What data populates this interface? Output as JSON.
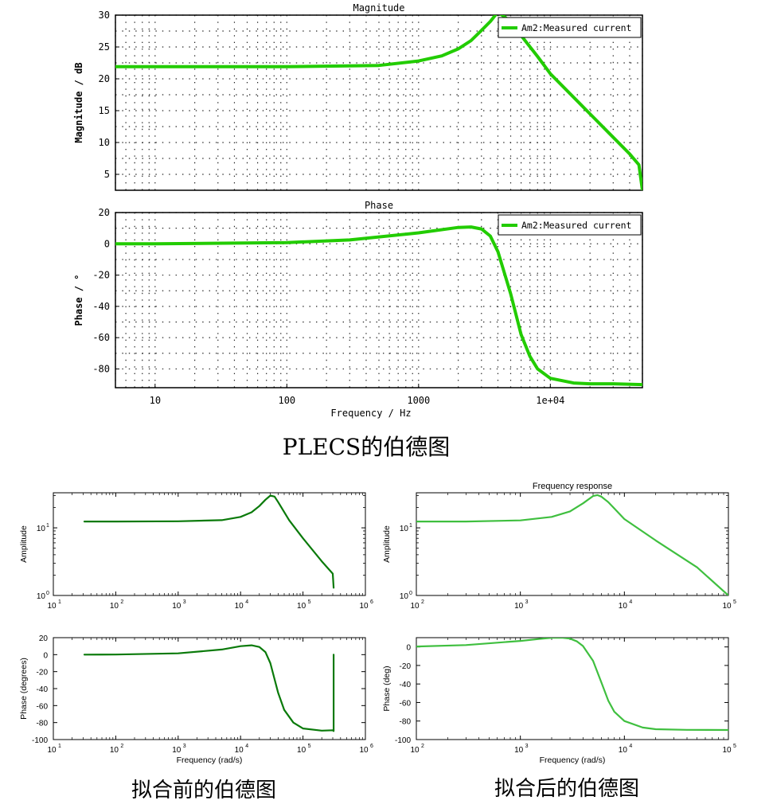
{
  "captions": {
    "plecs": "PLECS的伯德图",
    "before": "拟合前的伯德图",
    "after": "拟合后的伯德图"
  },
  "colors": {
    "plecs_line": "#22cc00",
    "before_line": "#0a7a0a",
    "after_line": "#3fbf3f",
    "grid_dot": "#222222",
    "axis": "#000000"
  },
  "chart_data": [
    {
      "id": "plecs-magnitude",
      "type": "line",
      "title": "Magnitude",
      "xlabel": "",
      "ylabel": "Magnitude / dB",
      "xscale": "log",
      "xlim": [
        5,
        50000
      ],
      "ylim": [
        2.5,
        30
      ],
      "yticks": [
        5,
        10,
        15,
        20,
        25,
        30
      ],
      "ytick_labels": [
        "5",
        "10",
        "15",
        "20",
        "25",
        "30"
      ],
      "xticks": [],
      "xtick_labels": [],
      "grid": "dotted",
      "legend": {
        "position": "top-right",
        "entries": [
          "Am2:Measured current"
        ]
      },
      "series": [
        {
          "name": "Am2:Measured current",
          "color": "#22cc00",
          "x": [
            5,
            10,
            100,
            500,
            1000,
            1500,
            2000,
            2500,
            3000,
            3500,
            4000,
            5000,
            6000,
            8000,
            10000,
            20000,
            40000,
            47000,
            50000
          ],
          "y": [
            21.9,
            21.9,
            21.9,
            22.1,
            22.8,
            23.6,
            24.7,
            26.0,
            27.6,
            29.0,
            30.5,
            29.0,
            26.8,
            23.5,
            20.8,
            14.5,
            8.2,
            6.5,
            2.5
          ]
        }
      ]
    },
    {
      "id": "plecs-phase",
      "type": "line",
      "title": "Phase",
      "xlabel": "Frequency / Hz",
      "ylabel": "Phase / °",
      "xscale": "log",
      "xlim": [
        5,
        50000
      ],
      "ylim": [
        -92,
        20
      ],
      "yticks": [
        -80,
        -60,
        -40,
        -20,
        0,
        20
      ],
      "ytick_labels": [
        "-80",
        "-60",
        "-40",
        "-20",
        "0",
        "20"
      ],
      "xticks": [
        10,
        100,
        1000,
        10000
      ],
      "xtick_labels": [
        "10",
        "100",
        "1000",
        "1e+04"
      ],
      "grid": "dotted",
      "legend": {
        "position": "top-right",
        "entries": [
          "Am2:Measured current"
        ]
      },
      "series": [
        {
          "name": "Am2:Measured current",
          "color": "#22cc00",
          "x": [
            5,
            10,
            100,
            300,
            1000,
            2000,
            2500,
            3000,
            3500,
            4000,
            5000,
            6000,
            7000,
            8000,
            10000,
            15000,
            20000,
            30000,
            50000
          ],
          "y": [
            0,
            0,
            0.8,
            2.5,
            7.0,
            10.5,
            10.8,
            9.5,
            5.0,
            -5.0,
            -32.0,
            -58.0,
            -72.0,
            -80.0,
            -86.0,
            -89.0,
            -89.5,
            -89.5,
            -90.0
          ]
        }
      ]
    },
    {
      "id": "before-amplitude",
      "type": "line",
      "title": "",
      "xlabel": "",
      "ylabel": "Amplitude",
      "xscale": "log",
      "yscale": "log",
      "xlim": [
        10,
        1000000
      ],
      "ylim": [
        1,
        33
      ],
      "yticks": [
        1,
        10
      ],
      "ytick_labels": [
        "10^0",
        "10^1"
      ],
      "xticks": [
        10,
        100,
        1000,
        10000,
        100000,
        1000000
      ],
      "xtick_labels": [
        "10^1",
        "10^2",
        "10^3",
        "10^4",
        "10^5",
        "10^6"
      ],
      "grid": "off",
      "series": [
        {
          "color": "#0a7a0a",
          "x": [
            31.4,
            100,
            1000,
            5000,
            10000,
            15000,
            20000,
            25000,
            30000,
            35000,
            40000,
            60000,
            100000,
            200000,
            300000,
            310000
          ],
          "y": [
            12.4,
            12.4,
            12.5,
            13.0,
            14.5,
            17.0,
            21.0,
            26.0,
            30.0,
            29.0,
            24.0,
            13.0,
            7.0,
            3.2,
            2.1,
            1.3
          ]
        }
      ]
    },
    {
      "id": "before-phase",
      "type": "line",
      "title": "",
      "xlabel": "Frequency (rad/s)",
      "ylabel": "Phase (degrees)",
      "xscale": "log",
      "xlim": [
        10,
        1000000
      ],
      "ylim": [
        -100,
        20
      ],
      "yticks": [
        -100,
        -80,
        -60,
        -40,
        -20,
        0,
        20
      ],
      "ytick_labels": [
        "-100",
        "-80",
        "-60",
        "-40",
        "-20",
        "0",
        "20"
      ],
      "xticks": [
        10,
        100,
        1000,
        10000,
        100000,
        1000000
      ],
      "xtick_labels": [
        "10^1",
        "10^2",
        "10^3",
        "10^4",
        "10^5",
        "10^6"
      ],
      "grid": "off",
      "series": [
        {
          "color": "#0a7a0a",
          "x": [
            31.4,
            100,
            1000,
            5000,
            10000,
            15000,
            20000,
            25000,
            30000,
            40000,
            50000,
            70000,
            100000,
            200000,
            300000,
            310000,
            310001,
            310002
          ],
          "y": [
            0,
            0.1,
            1.5,
            6.0,
            10.0,
            11.0,
            9.0,
            3.0,
            -10.0,
            -45.0,
            -65.0,
            -80.0,
            -87.0,
            -89.5,
            -89.0,
            -90.0,
            0,
            0
          ]
        }
      ]
    },
    {
      "id": "after-amplitude",
      "type": "line",
      "title": "Frequency response",
      "xlabel": "",
      "ylabel": "Amplitude",
      "xscale": "log",
      "yscale": "log",
      "xlim": [
        100,
        100000
      ],
      "ylim": [
        1,
        33
      ],
      "yticks": [
        1,
        10
      ],
      "ytick_labels": [
        "10^0",
        "10^1"
      ],
      "xticks": [
        100,
        1000,
        10000,
        100000
      ],
      "xtick_labels": [
        "10^2",
        "10^3",
        "10^4",
        "10^5"
      ],
      "grid": "off",
      "series": [
        {
          "color": "#3fbf3f",
          "x": [
            100,
            300,
            1000,
            2000,
            3000,
            4000,
            5000,
            5500,
            6000,
            7000,
            10000,
            20000,
            50000,
            100000
          ],
          "y": [
            12.4,
            12.4,
            12.9,
            14.5,
            17.5,
            23.0,
            29.5,
            30.5,
            29.0,
            24.0,
            13.5,
            6.5,
            2.6,
            1.0
          ]
        }
      ]
    },
    {
      "id": "after-phase",
      "type": "line",
      "title": "",
      "xlabel": "Frequency (rad/s)",
      "ylabel": "Phase (deg)",
      "xscale": "log",
      "xlim": [
        100,
        100000
      ],
      "ylim": [
        -100,
        10
      ],
      "yticks": [
        -100,
        -80,
        -60,
        -40,
        -20,
        0
      ],
      "ytick_labels": [
        "-100",
        "-80",
        "-60",
        "-40",
        "-20",
        "0"
      ],
      "xticks": [
        100,
        1000,
        10000,
        100000
      ],
      "xtick_labels": [
        "10^2",
        "10^3",
        "10^4",
        "10^5"
      ],
      "grid": "off",
      "series": [
        {
          "color": "#3fbf3f",
          "x": [
            100,
            300,
            1000,
            1500,
            2000,
            2500,
            3000,
            3500,
            4000,
            5000,
            6000,
            7000,
            8000,
            10000,
            15000,
            20000,
            40000,
            100000
          ],
          "y": [
            0.5,
            2.0,
            6.5,
            8.5,
            9.8,
            10.0,
            9.0,
            6.0,
            1.0,
            -15.0,
            -38.0,
            -58.0,
            -70.0,
            -80.0,
            -87.0,
            -88.8,
            -89.5,
            -89.7
          ]
        }
      ]
    }
  ]
}
